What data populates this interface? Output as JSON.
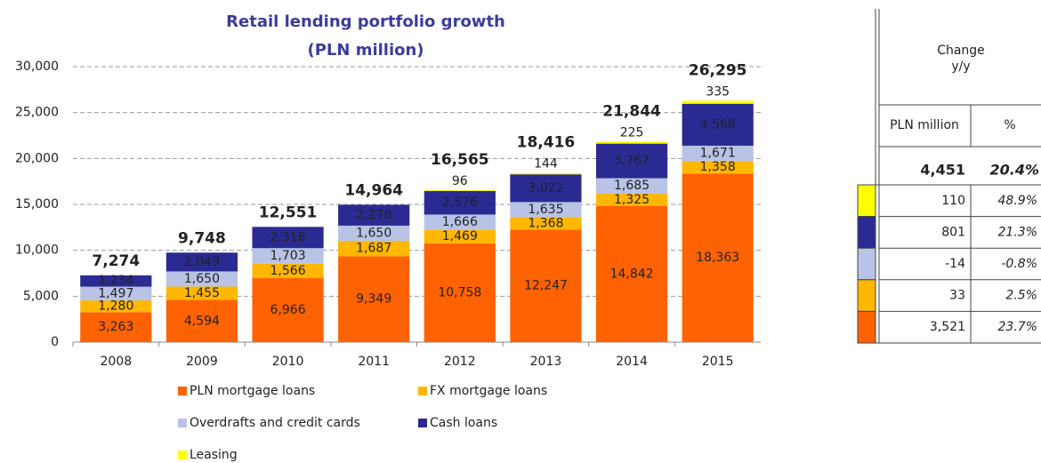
{
  "chart_data": {
    "type": "bar",
    "stacked": true,
    "title": [
      "Retail lending portfolio growth",
      "(PLN million)"
    ],
    "categories": [
      "2008",
      "2009",
      "2010",
      "2011",
      "2012",
      "2013",
      "2014",
      "2015"
    ],
    "series": [
      {
        "name": "PLN mortgage loans",
        "color": "#ff6200",
        "values": [
          3263,
          4594,
          6966,
          9349,
          10758,
          12247,
          14842,
          18363
        ],
        "value_labels": [
          "3,263",
          "4,594",
          "6,966",
          "9,349",
          "10,758",
          "12,247",
          "14,842",
          "18,363"
        ]
      },
      {
        "name": "FX mortgage loans",
        "color": "#ffb700",
        "values": [
          1280,
          1455,
          1566,
          1687,
          1469,
          1368,
          1325,
          1358
        ],
        "value_labels": [
          "1,280",
          "1,455",
          "1,566",
          "1,687",
          "1,469",
          "1,368",
          "1,325",
          "1,358"
        ]
      },
      {
        "name": "Overdrafts and credit cards",
        "color": "#b8c3e6",
        "values": [
          1497,
          1650,
          1703,
          1650,
          1666,
          1635,
          1685,
          1671
        ],
        "value_labels": [
          "1,497",
          "1,650",
          "1,703",
          "1,650",
          "1,666",
          "1,635",
          "1,685",
          "1,671"
        ]
      },
      {
        "name": "Cash loans",
        "color": "#2b2a92",
        "values": [
          1234,
          2049,
          2316,
          2278,
          2576,
          3022,
          3767,
          4568
        ],
        "value_labels": [
          "1,234",
          "2,049",
          "2,316",
          "2,278",
          "2,576",
          "3,022",
          "3,767",
          "4,568"
        ]
      },
      {
        "name": "Leasing",
        "color": "#ffff00",
        "values": [
          null,
          null,
          null,
          null,
          96,
          144,
          225,
          335
        ]
      }
    ],
    "totals": [
      7274,
      9748,
      12551,
      14964,
      16565,
      18416,
      21844,
      26295
    ],
    "total_labels": [
      "7,274",
      "9,748",
      "12,551",
      "14,964",
      "16,565",
      "18,416",
      "21,844",
      "26,295"
    ],
    "ylim": [
      0,
      30000
    ],
    "yticks": [
      0,
      {
        "value": 5000,
        "label": "5,000"
      },
      {
        "value": 10000,
        "label": "10,000"
      },
      {
        "value": 15000,
        "label": "15,000"
      },
      {
        "value": 20000,
        "label": "20,000"
      },
      {
        "value": 25000,
        "label": "25,000"
      },
      {
        "value": 30000,
        "label": "30,000"
      }
    ],
    "grid": true
  },
  "table": {
    "header": [
      "Change",
      "y/y"
    ],
    "columns": [
      "PLN million",
      "%"
    ],
    "total": [
      "4,451",
      "20.4%"
    ],
    "rows": [
      {
        "color": "#ffff00",
        "cells": [
          "110",
          "48.9%"
        ]
      },
      {
        "color": "#2b2a92",
        "cells": [
          "801",
          "21.3%"
        ]
      },
      {
        "color": "#b8c3e6",
        "cells": [
          "-14",
          "-0.8%"
        ]
      },
      {
        "color": "#ffb700",
        "cells": [
          "33",
          "2.5%"
        ]
      },
      {
        "color": "#ff6200",
        "cells": [
          "3,521",
          "23.7%"
        ]
      }
    ]
  }
}
